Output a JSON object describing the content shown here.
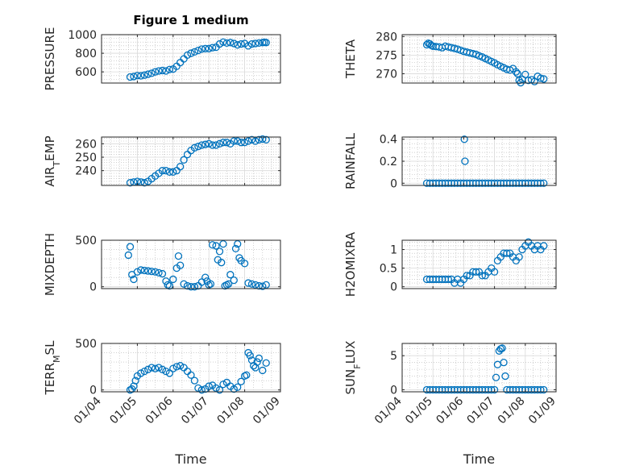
{
  "figure": {
    "title": "Figure 1 medium"
  },
  "colors": {
    "marker": "#0072bd",
    "axis": "#262626",
    "grid": "#b3b3b3"
  },
  "chart_data": [
    {
      "id": "pressure",
      "type": "scatter",
      "marker": "circle",
      "title": "Figure 1 medium",
      "ylabel": "PRESSURE",
      "ylabel_sub": null,
      "ylabel_after": null,
      "ylim": [
        480,
        1000
      ],
      "yticks": [
        600,
        800,
        1000
      ],
      "ytick_labels": [
        "600",
        "800",
        "1000"
      ],
      "xlim": [
        0,
        5
      ],
      "xticks": [
        0,
        1,
        2,
        3,
        4,
        5
      ],
      "xtick_labels": [],
      "grid": true,
      "x": [
        0.8,
        0.9,
        1.0,
        1.1,
        1.2,
        1.3,
        1.4,
        1.5,
        1.6,
        1.7,
        1.8,
        1.9,
        2.0,
        2.1,
        2.2,
        2.3,
        2.4,
        2.5,
        2.6,
        2.7,
        2.8,
        2.9,
        3.0,
        3.1,
        3.2,
        3.3,
        3.4,
        3.5,
        3.6,
        3.7,
        3.8,
        3.9,
        4.0,
        4.1,
        4.2,
        4.3,
        4.4,
        4.5,
        4.55,
        4.6
      ],
      "y": [
        545,
        550,
        560,
        558,
        565,
        575,
        585,
        600,
        610,
        615,
        610,
        625,
        630,
        660,
        700,
        740,
        780,
        800,
        815,
        830,
        845,
        850,
        850,
        860,
        865,
        900,
        920,
        910,
        915,
        905,
        890,
        900,
        905,
        880,
        900,
        905,
        910,
        915,
        918,
        915
      ]
    },
    {
      "id": "theta",
      "type": "scatter",
      "marker": "circle",
      "ylabel": "THETA",
      "ylabel_sub": null,
      "ylabel_after": null,
      "ylim": [
        267.5,
        280.5
      ],
      "yticks": [
        270,
        275,
        280
      ],
      "ytick_labels": [
        "270",
        "275",
        "280"
      ],
      "xlim": [
        0,
        5
      ],
      "xticks": [
        0,
        1,
        2,
        3,
        4,
        5
      ],
      "xtick_labels": [],
      "grid": true,
      "x": [
        0.8,
        0.85,
        0.9,
        0.95,
        1.0,
        1.1,
        1.2,
        1.3,
        1.4,
        1.5,
        1.6,
        1.7,
        1.8,
        1.9,
        2.0,
        2.1,
        2.2,
        2.3,
        2.4,
        2.5,
        2.6,
        2.7,
        2.8,
        2.9,
        3.0,
        3.1,
        3.2,
        3.3,
        3.4,
        3.5,
        3.6,
        3.7,
        3.75,
        3.8,
        3.85,
        3.9,
        4.0,
        4.1,
        4.2,
        4.3,
        4.4,
        4.5,
        4.6
      ],
      "y": [
        277.8,
        278.2,
        278.0,
        277.6,
        277.4,
        277.3,
        277.2,
        277.0,
        277.4,
        277.2,
        277.0,
        276.8,
        276.6,
        276.3,
        276.0,
        275.8,
        275.6,
        275.4,
        275.2,
        274.8,
        274.5,
        274.1,
        273.7,
        273.3,
        272.9,
        272.4,
        272.0,
        271.6,
        271.2,
        271.0,
        271.4,
        270.5,
        270.0,
        268.2,
        267.6,
        268.5,
        269.8,
        268.2,
        268.4,
        267.9,
        269.3,
        268.8,
        268.6
      ]
    },
    {
      "id": "airtemp",
      "type": "scatter",
      "marker": "circle",
      "ylabel": "AIR",
      "ylabel_sub": "T",
      "ylabel_after": "EMP",
      "ylim": [
        229,
        265
      ],
      "yticks": [
        240,
        250,
        260
      ],
      "ytick_labels": [
        "240",
        "250",
        "260"
      ],
      "xlim": [
        0,
        5
      ],
      "xticks": [
        0,
        1,
        2,
        3,
        4,
        5
      ],
      "xtick_labels": [],
      "grid": true,
      "x": [
        0.8,
        0.9,
        1.0,
        1.1,
        1.2,
        1.3,
        1.4,
        1.5,
        1.6,
        1.7,
        1.8,
        1.9,
        2.0,
        2.1,
        2.2,
        2.3,
        2.4,
        2.5,
        2.6,
        2.7,
        2.8,
        2.9,
        3.0,
        3.1,
        3.2,
        3.3,
        3.4,
        3.5,
        3.6,
        3.7,
        3.8,
        3.9,
        4.0,
        4.1,
        4.2,
        4.3,
        4.4,
        4.5,
        4.6
      ],
      "y": [
        231,
        231.5,
        232,
        231.5,
        231,
        232,
        234,
        236,
        238,
        240,
        240,
        239,
        239,
        240,
        243,
        248,
        252,
        255,
        257,
        258,
        259,
        259.5,
        260,
        259,
        259,
        260,
        261,
        261,
        260,
        262,
        262,
        261,
        261,
        262,
        263,
        262,
        263,
        263.5,
        263
      ]
    },
    {
      "id": "rainfall",
      "type": "scatter",
      "marker": "circle",
      "ylabel": "RAINFALL",
      "ylabel_sub": null,
      "ylabel_after": null,
      "ylim": [
        -0.02,
        0.42
      ],
      "yticks": [
        0,
        0.2,
        0.4
      ],
      "ytick_labels": [
        "0",
        "0.2",
        "0.4"
      ],
      "xlim": [
        0,
        5
      ],
      "xticks": [
        0,
        1,
        2,
        3,
        4,
        5
      ],
      "xtick_labels": [],
      "grid": true,
      "x": [
        0.8,
        0.9,
        1.0,
        1.1,
        1.2,
        1.3,
        1.4,
        1.5,
        1.6,
        1.7,
        1.8,
        1.9,
        2.0,
        2.02,
        2.04,
        2.1,
        2.2,
        2.3,
        2.4,
        2.5,
        2.6,
        2.7,
        2.8,
        2.9,
        3.0,
        3.1,
        3.2,
        3.3,
        3.4,
        3.5,
        3.6,
        3.7,
        3.8,
        3.9,
        4.0,
        4.1,
        4.2,
        4.3,
        4.4,
        4.5,
        4.6
      ],
      "y": [
        0,
        0,
        0,
        0,
        0,
        0,
        0,
        0,
        0,
        0,
        0,
        0,
        0,
        0.4,
        0.2,
        0,
        0,
        0,
        0,
        0,
        0,
        0,
        0,
        0,
        0,
        0,
        0,
        0,
        0,
        0,
        0,
        0,
        0,
        0,
        0,
        0,
        0,
        0,
        0,
        0,
        0
      ]
    },
    {
      "id": "mixdepth",
      "type": "scatter",
      "marker": "circle",
      "ylabel": "MIXDEPTH",
      "ylabel_sub": null,
      "ylabel_after": null,
      "ylim": [
        -20,
        500
      ],
      "yticks": [
        0,
        500
      ],
      "ytick_labels": [
        "0",
        "500"
      ],
      "xlim": [
        0,
        5
      ],
      "xticks": [
        0,
        1,
        2,
        3,
        4,
        5
      ],
      "xtick_labels": [],
      "grid": true,
      "x": [
        0.75,
        0.8,
        0.85,
        0.9,
        1.0,
        1.1,
        1.2,
        1.3,
        1.4,
        1.5,
        1.6,
        1.7,
        1.8,
        1.85,
        1.9,
        2.0,
        2.1,
        2.15,
        2.2,
        2.3,
        2.4,
        2.5,
        2.6,
        2.7,
        2.8,
        2.9,
        2.95,
        3.0,
        3.05,
        3.1,
        3.2,
        3.25,
        3.3,
        3.35,
        3.4,
        3.45,
        3.5,
        3.55,
        3.6,
        3.7,
        3.75,
        3.8,
        3.85,
        3.9,
        4.0,
        4.1,
        4.2,
        4.3,
        4.4,
        4.5,
        4.6
      ],
      "y": [
        340,
        430,
        130,
        80,
        160,
        180,
        175,
        170,
        165,
        160,
        150,
        140,
        60,
        20,
        10,
        80,
        200,
        330,
        230,
        30,
        10,
        0,
        0,
        10,
        50,
        100,
        60,
        20,
        30,
        450,
        440,
        290,
        380,
        260,
        460,
        10,
        20,
        30,
        130,
        70,
        410,
        460,
        310,
        280,
        250,
        40,
        30,
        20,
        10,
        5,
        20
      ]
    },
    {
      "id": "h2omixra",
      "type": "scatter",
      "marker": "circle",
      "ylabel": "H2OMIXRA",
      "ylabel_sub": null,
      "ylabel_after": null,
      "ylim": [
        -0.05,
        1.25
      ],
      "yticks": [
        0,
        0.5,
        1
      ],
      "ytick_labels": [
        "0",
        "0.5",
        "1"
      ],
      "xlim": [
        0,
        5
      ],
      "xticks": [
        0,
        1,
        2,
        3,
        4,
        5
      ],
      "xtick_labels": [],
      "grid": true,
      "x": [
        0.8,
        0.9,
        1.0,
        1.1,
        1.2,
        1.3,
        1.4,
        1.5,
        1.6,
        1.7,
        1.8,
        1.9,
        2.0,
        2.1,
        2.2,
        2.3,
        2.4,
        2.5,
        2.6,
        2.7,
        2.8,
        2.9,
        3.0,
        3.1,
        3.2,
        3.3,
        3.4,
        3.5,
        3.6,
        3.7,
        3.8,
        3.9,
        4.0,
        4.1,
        4.2,
        4.3,
        4.4,
        4.5,
        4.6
      ],
      "y": [
        0.2,
        0.2,
        0.2,
        0.2,
        0.2,
        0.2,
        0.2,
        0.2,
        0.2,
        0.1,
        0.2,
        0.1,
        0.2,
        0.3,
        0.3,
        0.4,
        0.4,
        0.4,
        0.3,
        0.3,
        0.4,
        0.5,
        0.4,
        0.7,
        0.8,
        0.9,
        0.9,
        0.9,
        0.8,
        0.7,
        0.8,
        1.0,
        1.1,
        1.2,
        1.1,
        1.0,
        1.1,
        1.0,
        1.1
      ]
    },
    {
      "id": "terrmsl",
      "type": "scatter",
      "marker": "circle",
      "ylabel": "TERR",
      "ylabel_sub": "M",
      "ylabel_after": "SL",
      "ylim": [
        -20,
        500
      ],
      "yticks": [
        0,
        500
      ],
      "ytick_labels": [
        "0",
        "500"
      ],
      "xlim": [
        0,
        5
      ],
      "xticks": [
        0,
        1,
        2,
        3,
        4,
        5
      ],
      "xtick_labels": [
        "01/04",
        "01/05",
        "01/06",
        "01/07",
        "01/08",
        "01/09"
      ],
      "grid": true,
      "xlabel": "Time",
      "x": [
        0.8,
        0.85,
        0.9,
        0.95,
        1.0,
        1.1,
        1.2,
        1.3,
        1.4,
        1.5,
        1.6,
        1.7,
        1.8,
        1.9,
        2.0,
        2.1,
        2.2,
        2.3,
        2.4,
        2.5,
        2.6,
        2.7,
        2.8,
        2.9,
        3.0,
        3.1,
        3.2,
        3.3,
        3.4,
        3.5,
        3.6,
        3.7,
        3.8,
        3.9,
        4.0,
        4.05,
        4.1,
        4.15,
        4.2,
        4.25,
        4.3,
        4.35,
        4.4,
        4.5,
        4.6
      ],
      "y": [
        0,
        10,
        40,
        100,
        150,
        180,
        200,
        220,
        240,
        230,
        240,
        220,
        200,
        180,
        230,
        250,
        260,
        240,
        200,
        160,
        100,
        20,
        0,
        10,
        40,
        50,
        20,
        0,
        60,
        80,
        40,
        10,
        30,
        90,
        150,
        160,
        400,
        370,
        320,
        260,
        240,
        300,
        340,
        210,
        290
      ]
    },
    {
      "id": "sunflux",
      "type": "scatter",
      "marker": "circle",
      "ylabel": "SUN",
      "ylabel_sub": "F",
      "ylabel_after": "LUX",
      "ylim": [
        -0.3,
        6.8
      ],
      "yticks": [
        0,
        5
      ],
      "ytick_labels": [
        "0",
        "5"
      ],
      "xlim": [
        0,
        5
      ],
      "xticks": [
        0,
        1,
        2,
        3,
        4,
        5
      ],
      "xtick_labels": [
        "01/04",
        "01/05",
        "01/06",
        "01/07",
        "01/08",
        "01/09"
      ],
      "grid": true,
      "xlabel": "Time",
      "x": [
        0.8,
        0.9,
        1.0,
        1.1,
        1.2,
        1.3,
        1.4,
        1.5,
        1.6,
        1.7,
        1.8,
        1.9,
        2.0,
        2.1,
        2.2,
        2.3,
        2.4,
        2.5,
        2.6,
        2.7,
        2.8,
        2.9,
        3.0,
        3.05,
        3.1,
        3.15,
        3.2,
        3.25,
        3.3,
        3.35,
        3.4,
        3.5,
        3.6,
        3.7,
        3.8,
        3.9,
        4.0,
        4.1,
        4.2,
        4.3,
        4.4,
        4.5,
        4.6
      ],
      "y": [
        0,
        0,
        0,
        0,
        0,
        0,
        0,
        0,
        0,
        0,
        0,
        0,
        0,
        0,
        0,
        0,
        0,
        0,
        0,
        0,
        0,
        0,
        0,
        1.8,
        3.7,
        5.7,
        6.0,
        6.1,
        4.0,
        2.0,
        0,
        0,
        0,
        0,
        0,
        0,
        0,
        0,
        0,
        0,
        0,
        0,
        0
      ]
    }
  ]
}
